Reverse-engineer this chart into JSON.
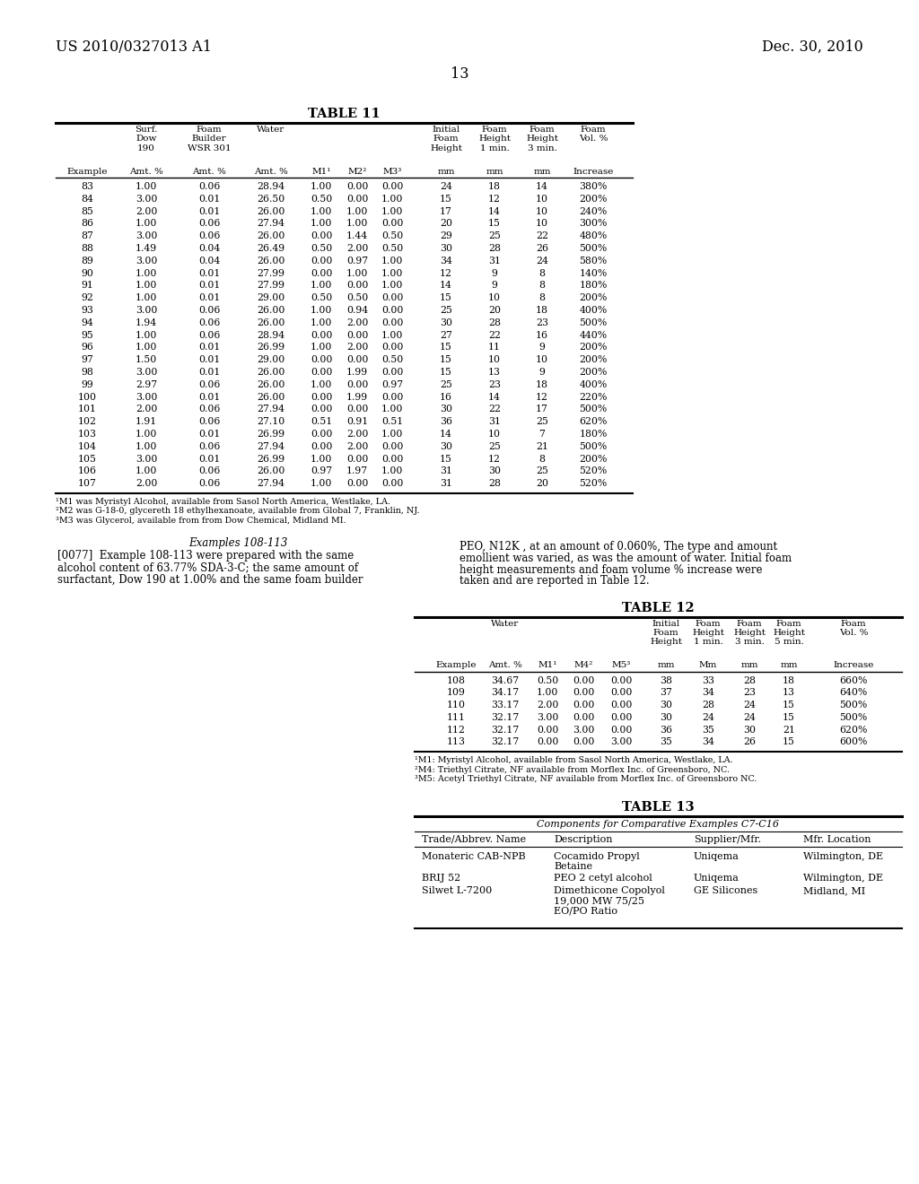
{
  "header_left": "US 2010/0327013 A1",
  "header_right": "Dec. 30, 2010",
  "page_number": "13",
  "table11_title": "TABLE 11",
  "table11_data": [
    [
      "83",
      "1.00",
      "0.06",
      "28.94",
      "1.00",
      "0.00",
      "0.00",
      "24",
      "18",
      "14",
      "380%"
    ],
    [
      "84",
      "3.00",
      "0.01",
      "26.50",
      "0.50",
      "0.00",
      "1.00",
      "15",
      "12",
      "10",
      "200%"
    ],
    [
      "85",
      "2.00",
      "0.01",
      "26.00",
      "1.00",
      "1.00",
      "1.00",
      "17",
      "14",
      "10",
      "240%"
    ],
    [
      "86",
      "1.00",
      "0.06",
      "27.94",
      "1.00",
      "1.00",
      "0.00",
      "20",
      "15",
      "10",
      "300%"
    ],
    [
      "87",
      "3.00",
      "0.06",
      "26.00",
      "0.00",
      "1.44",
      "0.50",
      "29",
      "25",
      "22",
      "480%"
    ],
    [
      "88",
      "1.49",
      "0.04",
      "26.49",
      "0.50",
      "2.00",
      "0.50",
      "30",
      "28",
      "26",
      "500%"
    ],
    [
      "89",
      "3.00",
      "0.04",
      "26.00",
      "0.00",
      "0.97",
      "1.00",
      "34",
      "31",
      "24",
      "580%"
    ],
    [
      "90",
      "1.00",
      "0.01",
      "27.99",
      "0.00",
      "1.00",
      "1.00",
      "12",
      "9",
      "8",
      "140%"
    ],
    [
      "91",
      "1.00",
      "0.01",
      "27.99",
      "1.00",
      "0.00",
      "1.00",
      "14",
      "9",
      "8",
      "180%"
    ],
    [
      "92",
      "1.00",
      "0.01",
      "29.00",
      "0.50",
      "0.50",
      "0.00",
      "15",
      "10",
      "8",
      "200%"
    ],
    [
      "93",
      "3.00",
      "0.06",
      "26.00",
      "1.00",
      "0.94",
      "0.00",
      "25",
      "20",
      "18",
      "400%"
    ],
    [
      "94",
      "1.94",
      "0.06",
      "26.00",
      "1.00",
      "2.00",
      "0.00",
      "30",
      "28",
      "23",
      "500%"
    ],
    [
      "95",
      "1.00",
      "0.06",
      "28.94",
      "0.00",
      "0.00",
      "1.00",
      "27",
      "22",
      "16",
      "440%"
    ],
    [
      "96",
      "1.00",
      "0.01",
      "26.99",
      "1.00",
      "2.00",
      "0.00",
      "15",
      "11",
      "9",
      "200%"
    ],
    [
      "97",
      "1.50",
      "0.01",
      "29.00",
      "0.00",
      "0.00",
      "0.50",
      "15",
      "10",
      "10",
      "200%"
    ],
    [
      "98",
      "3.00",
      "0.01",
      "26.00",
      "0.00",
      "1.99",
      "0.00",
      "15",
      "13",
      "9",
      "200%"
    ],
    [
      "99",
      "2.97",
      "0.06",
      "26.00",
      "1.00",
      "0.00",
      "0.97",
      "25",
      "23",
      "18",
      "400%"
    ],
    [
      "100",
      "3.00",
      "0.01",
      "26.00",
      "0.00",
      "1.99",
      "0.00",
      "16",
      "14",
      "12",
      "220%"
    ],
    [
      "101",
      "2.00",
      "0.06",
      "27.94",
      "0.00",
      "0.00",
      "1.00",
      "30",
      "22",
      "17",
      "500%"
    ],
    [
      "102",
      "1.91",
      "0.06",
      "27.10",
      "0.51",
      "0.91",
      "0.51",
      "36",
      "31",
      "25",
      "620%"
    ],
    [
      "103",
      "1.00",
      "0.01",
      "26.99",
      "0.00",
      "2.00",
      "1.00",
      "14",
      "10",
      "7",
      "180%"
    ],
    [
      "104",
      "1.00",
      "0.06",
      "27.94",
      "0.00",
      "2.00",
      "0.00",
      "30",
      "25",
      "21",
      "500%"
    ],
    [
      "105",
      "3.00",
      "0.01",
      "26.99",
      "1.00",
      "0.00",
      "0.00",
      "15",
      "12",
      "8",
      "200%"
    ],
    [
      "106",
      "1.00",
      "0.06",
      "26.00",
      "0.97",
      "1.97",
      "1.00",
      "31",
      "30",
      "25",
      "520%"
    ],
    [
      "107",
      "2.00",
      "0.06",
      "27.94",
      "1.00",
      "0.00",
      "0.00",
      "31",
      "28",
      "20",
      "520%"
    ]
  ],
  "table11_footnotes": [
    "¹M1 was Myristyl Alcohol, available from Sasol North America, Westlake, LA.",
    "²M2 was G-18-0, glycereth 18 ethylhexanoate, available from Global 7, Franklin, NJ.",
    "³M3 was Glycerol, available from from Dow Chemical, Midland MI."
  ],
  "examples_heading": "Examples 108-113",
  "left_para_lines": [
    "[0077]  Example 108-113 were prepared with the same",
    "alcohol content of 63.77% SDA-3-C; the same amount of",
    "surfactant, Dow 190 at 1.00% and the same foam builder"
  ],
  "right_para_lines": [
    "PEO, N12K , at an amount of 0.060%, The type and amount",
    "emollient was varied, as was the amount of water. Initial foam",
    "height measurements and foam volume % increase were",
    "taken and are reported in Table 12."
  ],
  "table12_title": "TABLE 12",
  "table12_data": [
    [
      "108",
      "34.67",
      "0.50",
      "0.00",
      "0.00",
      "38",
      "33",
      "28",
      "18",
      "660%"
    ],
    [
      "109",
      "34.17",
      "1.00",
      "0.00",
      "0.00",
      "37",
      "34",
      "23",
      "13",
      "640%"
    ],
    [
      "110",
      "33.17",
      "2.00",
      "0.00",
      "0.00",
      "30",
      "28",
      "24",
      "15",
      "500%"
    ],
    [
      "111",
      "32.17",
      "3.00",
      "0.00",
      "0.00",
      "30",
      "24",
      "24",
      "15",
      "500%"
    ],
    [
      "112",
      "32.17",
      "0.00",
      "3.00",
      "0.00",
      "36",
      "35",
      "30",
      "21",
      "620%"
    ],
    [
      "113",
      "32.17",
      "0.00",
      "0.00",
      "3.00",
      "35",
      "34",
      "26",
      "15",
      "600%"
    ]
  ],
  "table12_footnotes": [
    "¹M1: Myristyl Alcohol, available from Sasol North America, Westlake, LA.",
    "²M4: Triethyl Citrate, NF available from Morflex Inc. of Greensboro, NC.",
    "³M5: Acetyl Triethyl Citrate, NF available from Morflex Inc. of Greensboro NC."
  ],
  "table13_title": "TABLE 13",
  "table13_subtitle": "Components for Comparative Examples C7-C16",
  "table13_col_headers": [
    "Trade/Abbrev. Name",
    "Description",
    "Supplier/Mfr.",
    "Mfr. Location"
  ],
  "table13_data": [
    [
      "Monateric CAB-NPB",
      "Cocamido Propyl\nBetaine",
      "Uniqema",
      "Wilmington, DE"
    ],
    [
      "BRIJ 52",
      "PEO 2 cetyl alcohol",
      "Uniqema",
      "Wilmington, DE"
    ],
    [
      "Silwet L-7200",
      "Dimethicone Copolyol\n19,000 MW 75/25\nEO/PO Ratio",
      "GE Silicones",
      "Midland, MI"
    ]
  ]
}
